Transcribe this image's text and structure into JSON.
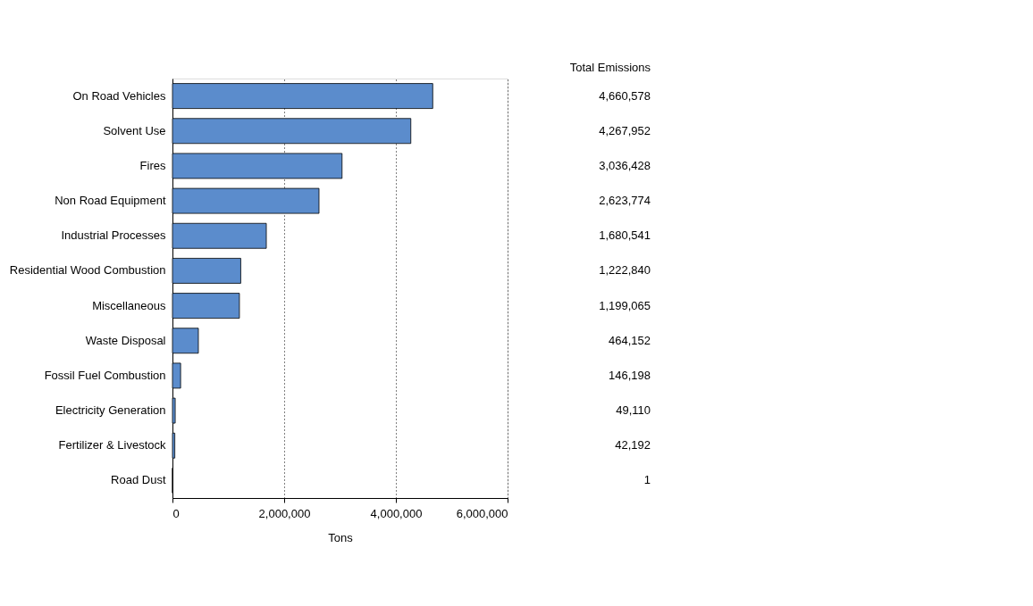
{
  "chart_data": {
    "type": "bar",
    "orientation": "horizontal",
    "xlabel": "Tons",
    "categories": [
      "On Road Vehicles",
      "Solvent Use",
      "Fires",
      "Non Road Equipment",
      "Industrial Processes",
      "Residential Wood Combustion",
      "Miscellaneous",
      "Waste Disposal",
      "Fossil Fuel Combustion",
      "Electricity Generation",
      "Fertilizer & Livestock",
      "Road Dust"
    ],
    "values": [
      4660578,
      4267952,
      3036428,
      2623774,
      1680541,
      1222840,
      1199065,
      464152,
      146198,
      49110,
      42192,
      1
    ],
    "color": "#5b8ccc",
    "value_labels": [
      "4,660,578",
      "4,267,952",
      "3,036,428",
      "2,623,774",
      "1,680,541",
      "1,222,840",
      "1,199,065",
      "464,152",
      "146,198",
      "49,110",
      "42,192",
      "1"
    ],
    "xlim": [
      0,
      6000000
    ],
    "xticks": [
      0,
      {
        "value": 2000000,
        "label": "2,000,000"
      },
      {
        "value": 4000000,
        "label": "4,000,000"
      },
      {
        "value": 6000000,
        "label": "6,000,000"
      }
    ],
    "grid": "x",
    "annotations": [
      "Total Emissions"
    ]
  }
}
